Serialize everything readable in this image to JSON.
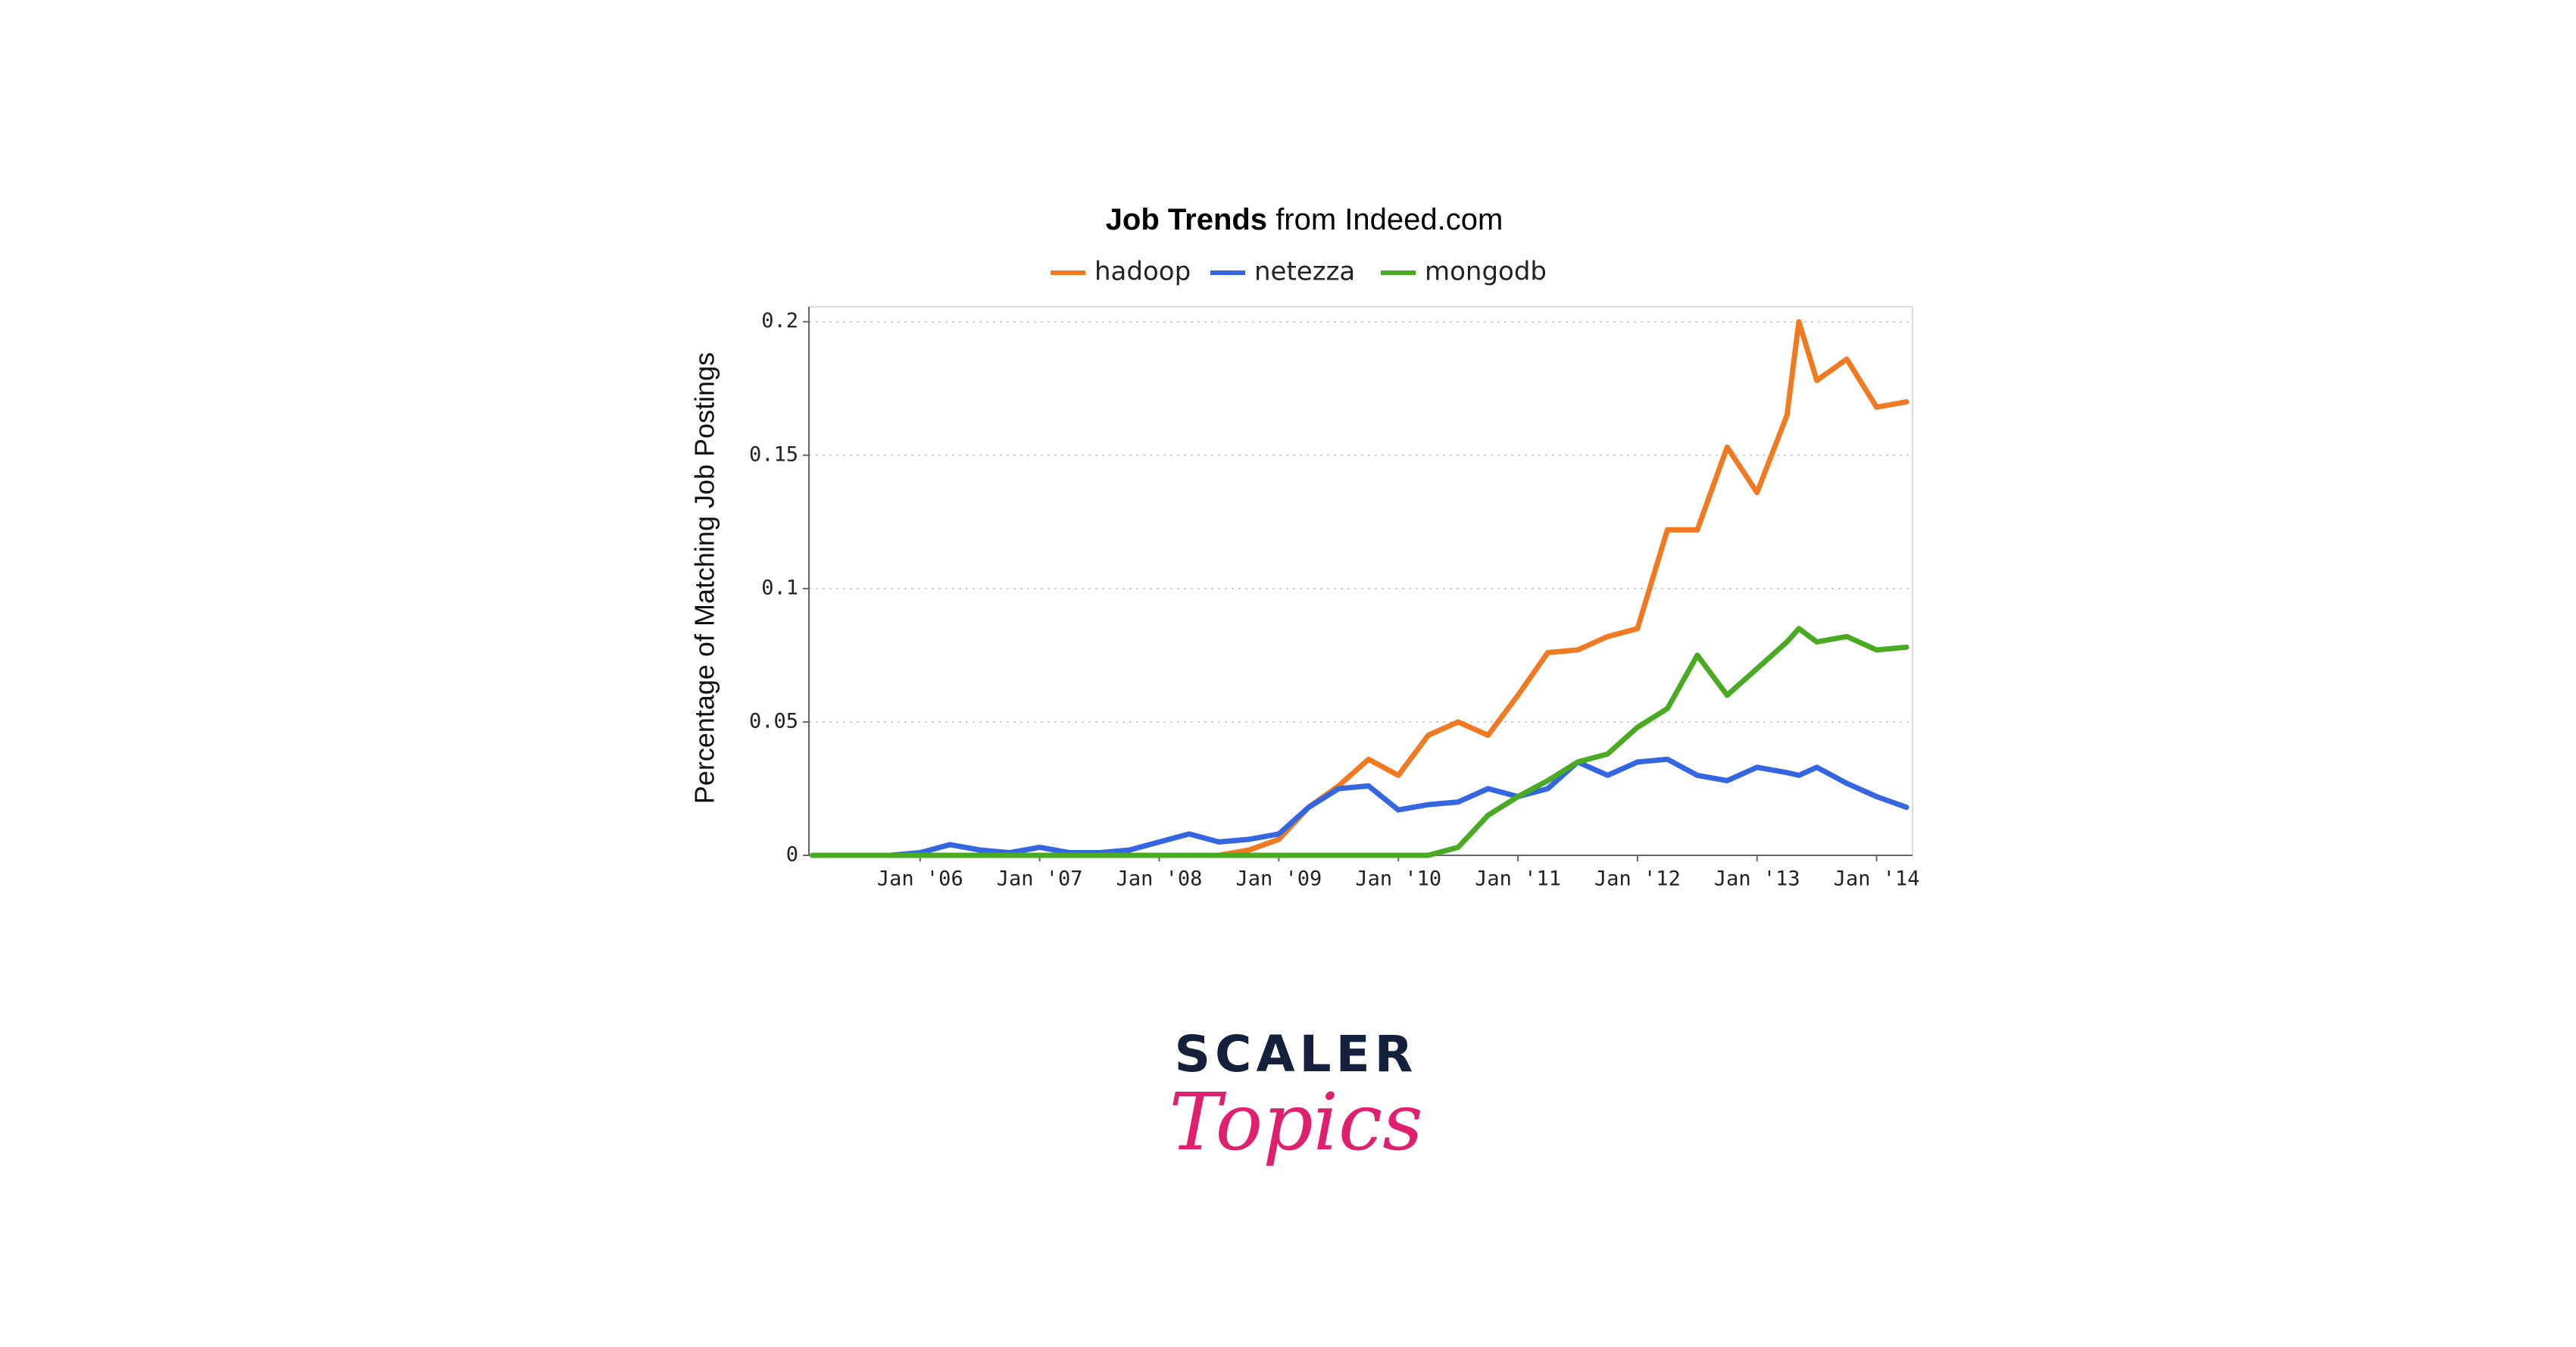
{
  "chart_data": {
    "type": "line",
    "title": "Job Trends",
    "title_suffix": "from Indeed.com",
    "ylabel": "Percentage of Matching Job Postings",
    "x": [
      2005.1,
      2005.5,
      2005.75,
      2006,
      2006.25,
      2006.5,
      2006.75,
      2007,
      2007.25,
      2007.5,
      2007.75,
      2008,
      2008.25,
      2008.5,
      2008.75,
      2009,
      2009.25,
      2009.5,
      2009.75,
      2010,
      2010.25,
      2010.5,
      2010.75,
      2011,
      2011.25,
      2011.5,
      2011.75,
      2012,
      2012.25,
      2012.5,
      2012.75,
      2013,
      2013.25,
      2013.35,
      2013.5,
      2013.75,
      2014,
      2014.25
    ],
    "series": [
      {
        "name": "hadoop",
        "color": "#f07a22",
        "values": [
          0,
          0,
          0,
          0,
          0,
          0,
          0,
          0,
          0,
          0,
          0,
          0,
          0,
          0,
          0.002,
          0.006,
          0.018,
          0.026,
          0.036,
          0.03,
          0.045,
          0.05,
          0.045,
          0.06,
          0.076,
          0.077,
          0.082,
          0.085,
          0.122,
          0.122,
          0.153,
          0.136,
          0.165,
          0.2,
          0.178,
          0.186,
          0.168,
          0.17
        ]
      },
      {
        "name": "netezza",
        "color": "#3366e0",
        "values": [
          0,
          0,
          0,
          0.001,
          0.004,
          0.002,
          0.001,
          0.003,
          0.001,
          0.001,
          0.002,
          0.005,
          0.008,
          0.005,
          0.006,
          0.008,
          0.018,
          0.025,
          0.026,
          0.017,
          0.019,
          0.02,
          0.025,
          0.022,
          0.025,
          0.035,
          0.03,
          0.035,
          0.036,
          0.03,
          0.028,
          0.033,
          0.031,
          0.03,
          0.033,
          0.027,
          0.022,
          0.018
        ]
      },
      {
        "name": "mongodb",
        "color": "#4aaa22",
        "values": [
          0,
          0,
          0,
          0,
          0,
          0,
          0,
          0,
          0,
          0,
          0,
          0,
          0,
          0,
          0,
          0,
          0,
          0,
          0,
          0,
          0,
          0.003,
          0.015,
          0.022,
          0.028,
          0.035,
          0.038,
          0.048,
          0.055,
          0.075,
          0.06,
          0.07,
          0.08,
          0.085,
          0.08,
          0.082,
          0.077,
          0.078
        ]
      }
    ],
    "xlim": [
      2005.07,
      2014.3
    ],
    "xticks": [
      {
        "value": 2006,
        "label": "Jan '06"
      },
      {
        "value": 2007,
        "label": "Jan '07"
      },
      {
        "value": 2008,
        "label": "Jan '08"
      },
      {
        "value": 2009,
        "label": "Jan '09"
      },
      {
        "value": 2010,
        "label": "Jan '10"
      },
      {
        "value": 2011,
        "label": "Jan '11"
      },
      {
        "value": 2012,
        "label": "Jan '12"
      },
      {
        "value": 2013,
        "label": "Jan '13"
      },
      {
        "value": 2014,
        "label": "Jan '14"
      }
    ],
    "ylim": [
      0,
      0.2056
    ],
    "yticks": [
      0,
      0.05,
      0.1,
      0.15,
      0.2
    ],
    "grid": true
  },
  "logo": {
    "line1": "SCALER",
    "line2": "Topics"
  }
}
